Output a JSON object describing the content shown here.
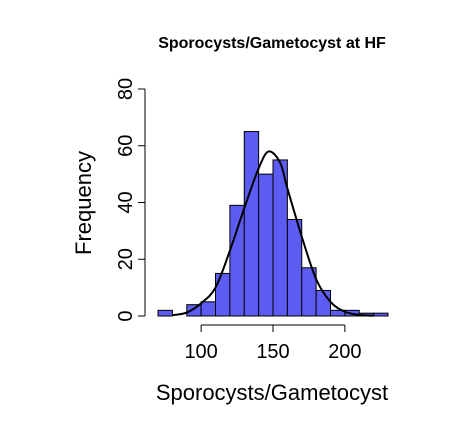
{
  "chart_data": {
    "type": "bar",
    "title": "Sporocysts/Gametocyst at HF",
    "xlabel": "Sporocysts/Gametocyst",
    "ylabel": "Frequency",
    "bin_edges": [
      70,
      80,
      90,
      100,
      110,
      120,
      130,
      140,
      150,
      160,
      170,
      180,
      190,
      200,
      210,
      220,
      230
    ],
    "values": [
      2,
      0,
      4,
      5,
      15,
      39,
      65,
      50,
      55,
      34,
      17,
      9,
      2,
      2,
      1,
      1
    ],
    "density_curve": {
      "x": [
        80,
        90,
        100,
        110,
        120,
        130,
        140,
        147,
        155,
        160,
        170,
        180,
        190,
        200,
        210,
        220
      ],
      "y": [
        0.3,
        1.2,
        4.5,
        10,
        23,
        38,
        52,
        58,
        54,
        45,
        28,
        13,
        5,
        1.5,
        0.4,
        0.1
      ]
    },
    "xlim": [
      70,
      230
    ],
    "ylim": [
      0,
      80
    ],
    "x_ticks": [
      100,
      150,
      200
    ],
    "y_ticks": [
      0,
      20,
      40,
      60,
      80
    ],
    "colors": {
      "bar_fill": "#5c5cf2",
      "bar_stroke": "#000000",
      "curve": "#000000"
    }
  }
}
